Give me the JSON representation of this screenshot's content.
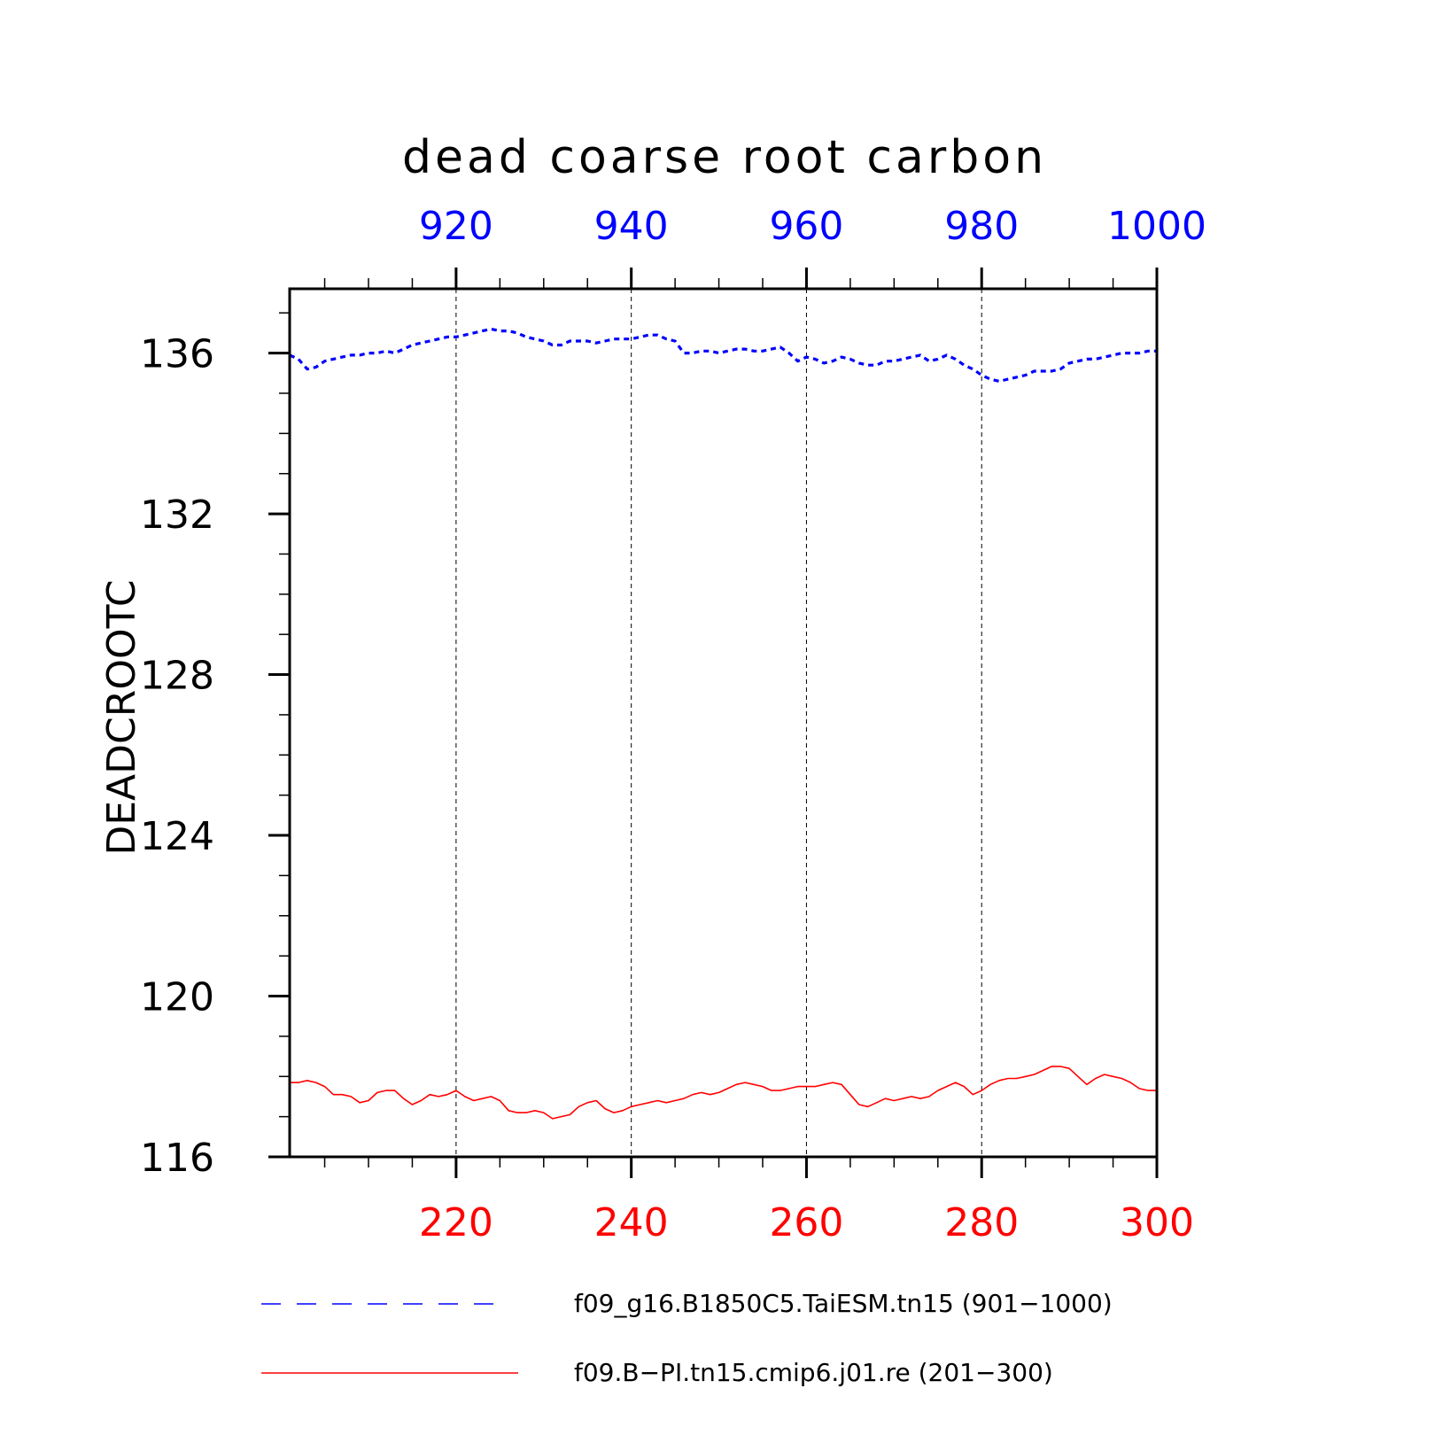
{
  "chart_data": {
    "type": "line",
    "title": "dead coarse root carbon",
    "ylabel": "DEADCROOTC",
    "ylim": [
      116,
      137.6
    ],
    "yticks": [
      116,
      120,
      124,
      128,
      132,
      136
    ],
    "y_minor_step": 1,
    "grid": "vertical dashed lines at major x ticks",
    "x_bottom": {
      "range": [
        201,
        300
      ],
      "ticks": [
        220,
        240,
        260,
        280,
        300
      ],
      "color": "#ff0000"
    },
    "x_top": {
      "range": [
        901,
        1000
      ],
      "ticks": [
        920,
        940,
        960,
        980,
        1000
      ],
      "color": "#0000ff"
    },
    "legend_position": "bottom",
    "series": [
      {
        "name": "f09_g16.B1850C5.TaiESM.tn15 (901−1000)",
        "axis": "top",
        "color": "#0000ff",
        "style": "dashed",
        "x_start": 901,
        "values": [
          135.95,
          135.85,
          135.6,
          135.65,
          135.8,
          135.85,
          135.9,
          135.95,
          135.95,
          136.0,
          136.0,
          136.05,
          136.0,
          136.1,
          136.2,
          136.25,
          136.3,
          136.35,
          136.4,
          136.4,
          136.45,
          136.5,
          136.55,
          136.6,
          136.55,
          136.55,
          136.5,
          136.4,
          136.35,
          136.3,
          136.2,
          136.2,
          136.3,
          136.3,
          136.3,
          136.25,
          136.3,
          136.35,
          136.35,
          136.35,
          136.4,
          136.45,
          136.45,
          136.35,
          136.3,
          136.0,
          136.0,
          136.05,
          136.05,
          136.0,
          136.05,
          136.1,
          136.1,
          136.05,
          136.05,
          136.1,
          136.15,
          136.0,
          135.8,
          135.9,
          135.85,
          135.75,
          135.8,
          135.9,
          135.85,
          135.75,
          135.7,
          135.7,
          135.8,
          135.8,
          135.85,
          135.9,
          135.95,
          135.8,
          135.85,
          135.95,
          135.85,
          135.7,
          135.6,
          135.45,
          135.35,
          135.3,
          135.35,
          135.4,
          135.45,
          135.55,
          135.55,
          135.55,
          135.6,
          135.75,
          135.8,
          135.85,
          135.85,
          135.9,
          135.95,
          136.0,
          136.0,
          136.0,
          136.05,
          136.05
        ]
      },
      {
        "name": "f09.B−PI.tn15.cmip6.j01.re (201−300)",
        "axis": "bottom",
        "color": "#ff0000",
        "style": "solid",
        "x_start": 201,
        "values": [
          117.85,
          117.85,
          117.9,
          117.85,
          117.75,
          117.55,
          117.55,
          117.5,
          117.35,
          117.4,
          117.6,
          117.65,
          117.65,
          117.45,
          117.3,
          117.4,
          117.55,
          117.5,
          117.55,
          117.65,
          117.5,
          117.4,
          117.45,
          117.5,
          117.4,
          117.15,
          117.1,
          117.1,
          117.15,
          117.1,
          116.95,
          117.0,
          117.05,
          117.25,
          117.35,
          117.4,
          117.2,
          117.1,
          117.15,
          117.25,
          117.3,
          117.35,
          117.4,
          117.35,
          117.4,
          117.45,
          117.55,
          117.6,
          117.55,
          117.6,
          117.7,
          117.8,
          117.85,
          117.8,
          117.75,
          117.65,
          117.65,
          117.7,
          117.75,
          117.75,
          117.75,
          117.8,
          117.85,
          117.8,
          117.55,
          117.3,
          117.25,
          117.35,
          117.45,
          117.4,
          117.45,
          117.5,
          117.45,
          117.5,
          117.65,
          117.75,
          117.85,
          117.75,
          117.55,
          117.65,
          117.8,
          117.9,
          117.95,
          117.95,
          118.0,
          118.05,
          118.15,
          118.25,
          118.25,
          118.2,
          118.0,
          117.8,
          117.95,
          118.05,
          118.0,
          117.95,
          117.85,
          117.7,
          117.65,
          117.65
        ]
      }
    ]
  }
}
